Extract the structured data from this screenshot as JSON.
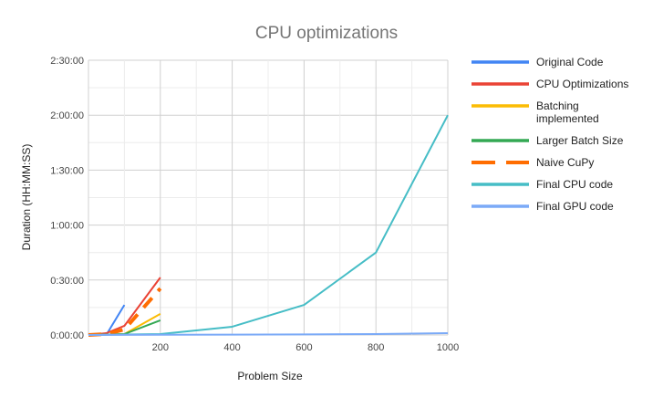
{
  "chart_data": {
    "type": "line",
    "title": "CPU optimizations",
    "xlabel": "Problem Size",
    "ylabel": "Duration (HH:MM:SS)",
    "xlim": [
      0,
      1000
    ],
    "ylim_minutes": [
      0,
      150
    ],
    "x_ticks": [
      200,
      400,
      600,
      800,
      1000
    ],
    "y_ticks": [
      "0:00:00",
      "0:30:00",
      "1:00:00",
      "1:30:00",
      "2:00:00",
      "2:30:00"
    ],
    "grid": true,
    "legend_position": "right",
    "y_unit": "minutes",
    "series": [
      {
        "name": "Original Code",
        "color": "#4285F4",
        "dashed": false,
        "x": [
          0,
          50,
          100
        ],
        "y": [
          0,
          0.2,
          16.4
        ]
      },
      {
        "name": "CPU Optimizations",
        "color": "#EA4335",
        "dashed": false,
        "x": [
          0,
          50,
          100,
          200
        ],
        "y": [
          0,
          1,
          5,
          31.4
        ]
      },
      {
        "name": "Batching\nimplemented",
        "color": "#FBBC04",
        "dashed": false,
        "x": [
          0,
          50,
          100,
          200
        ],
        "y": [
          0,
          0.2,
          0.5,
          11.5
        ]
      },
      {
        "name": "Larger Batch Size",
        "color": "#34A853",
        "dashed": false,
        "x": [
          0,
          50,
          100,
          200
        ],
        "y": [
          0,
          0.2,
          0.5,
          8
        ]
      },
      {
        "name": "Naive CuPy",
        "color": "#FF6D01",
        "dashed": true,
        "x": [
          0,
          50,
          100,
          200
        ],
        "y": [
          0,
          0.5,
          3,
          25.4
        ]
      },
      {
        "name": "Final CPU code",
        "color": "#46BDC6",
        "dashed": false,
        "x": [
          0,
          200,
          400,
          600,
          800,
          1000
        ],
        "y": [
          0,
          0.5,
          4.5,
          16.4,
          45,
          120
        ]
      },
      {
        "name": "Final GPU code",
        "color": "#7BAAF7",
        "dashed": false,
        "x": [
          0,
          200,
          400,
          600,
          800,
          1000
        ],
        "y": [
          0,
          0.1,
          0.2,
          0.3,
          0.5,
          1
        ]
      }
    ]
  }
}
